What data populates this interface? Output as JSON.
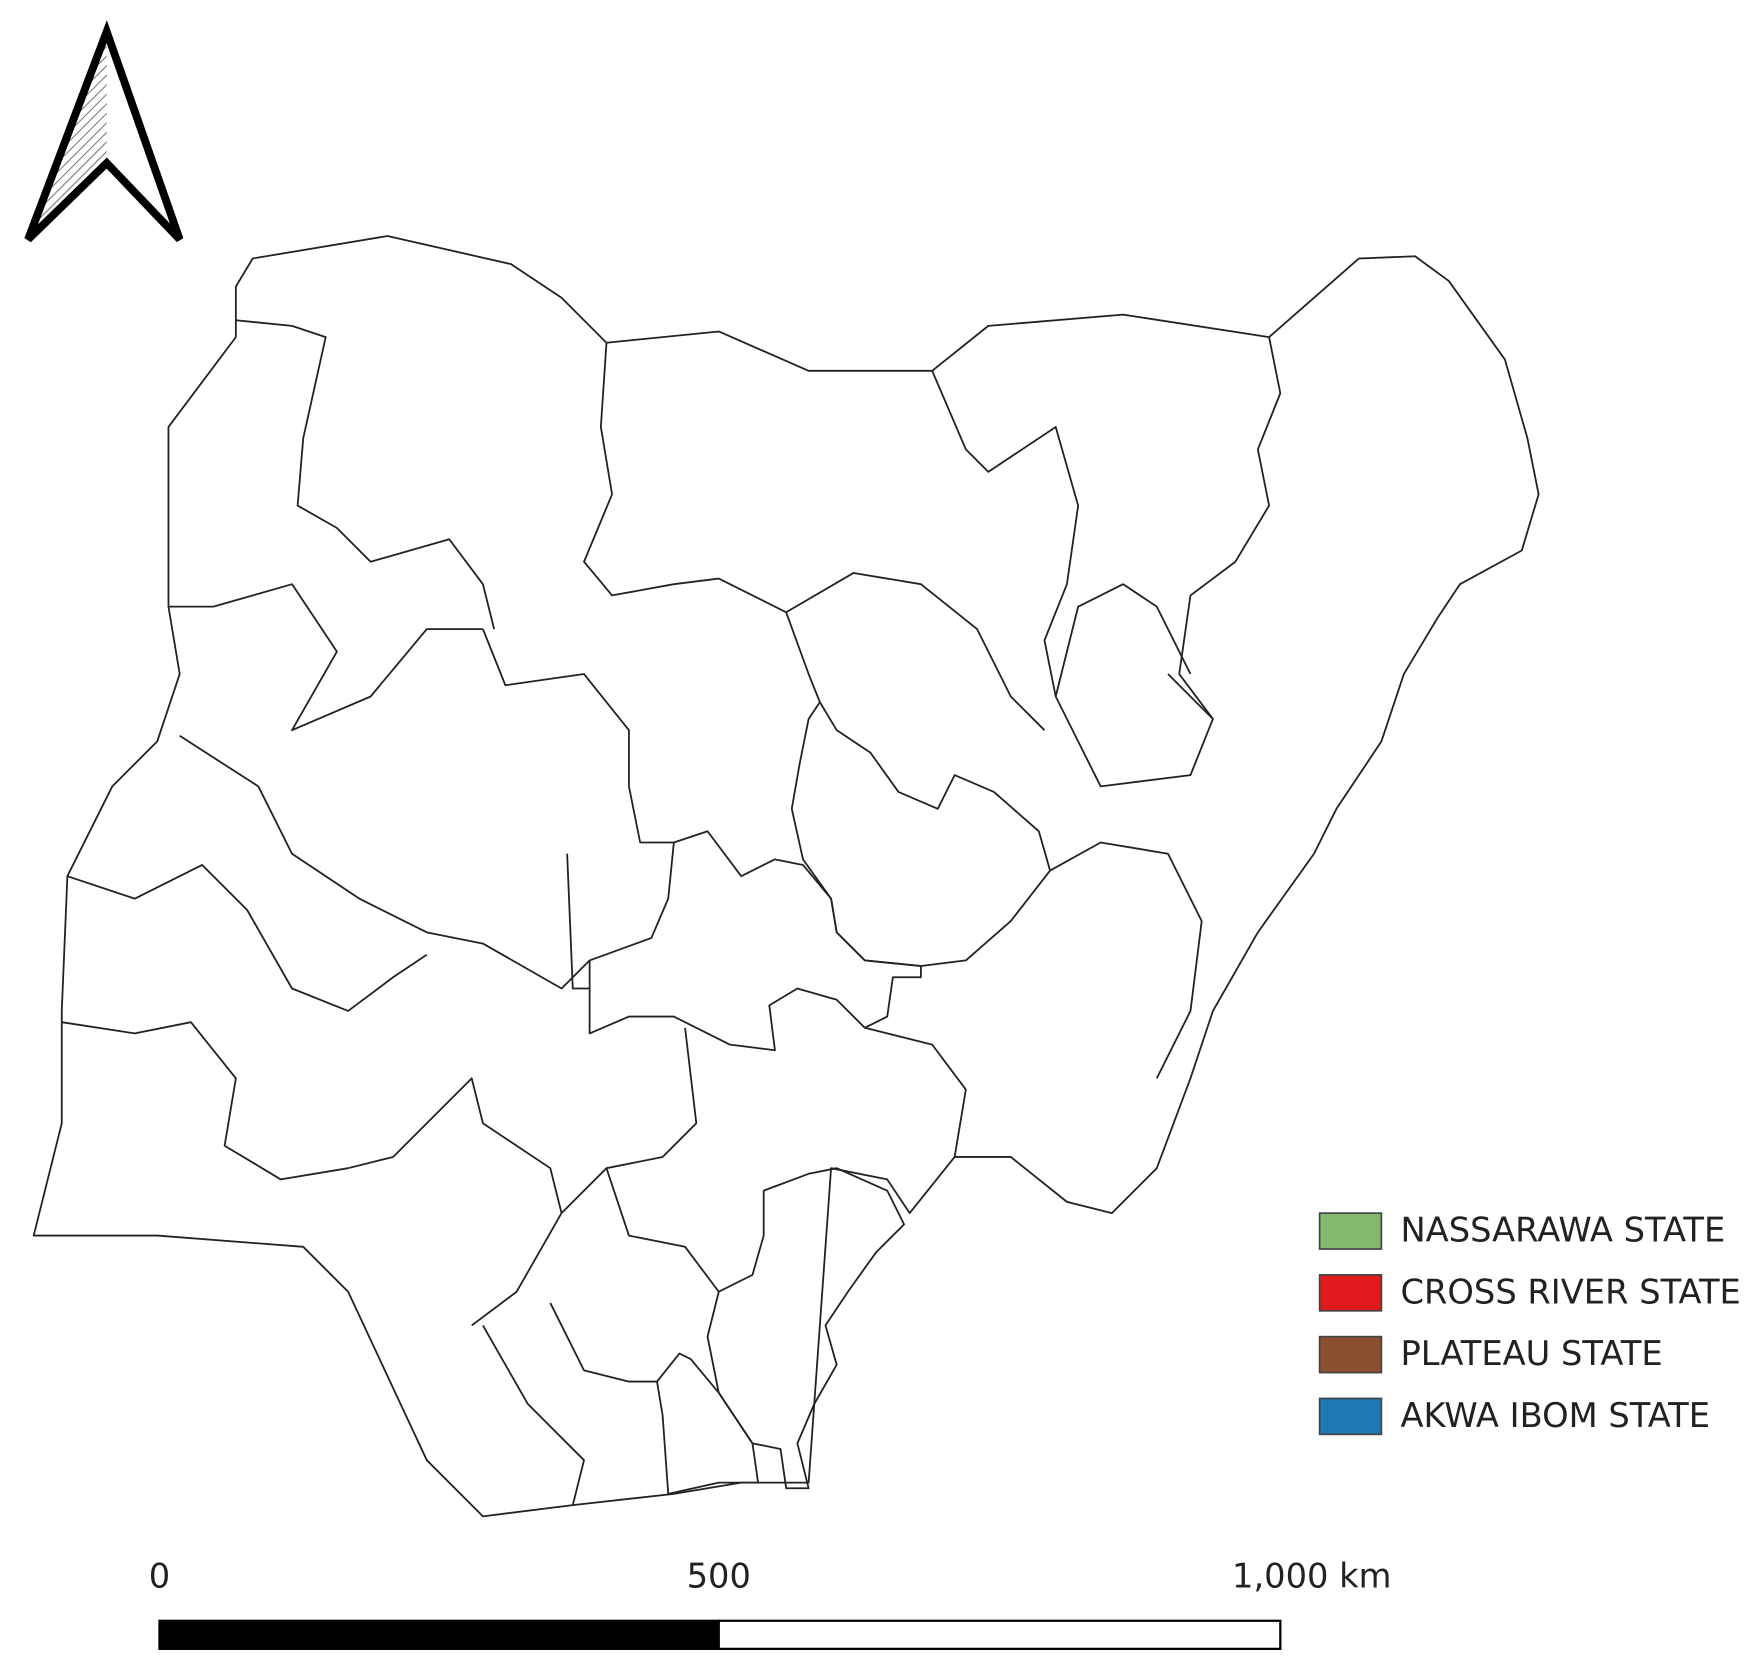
{
  "legend": {
    "items": [
      {
        "label": "NASSARAWA STATE",
        "color": "#84b86f"
      },
      {
        "label": "CROSS RIVER STATE",
        "color": "#e01a1d"
      },
      {
        "label": "PLATEAU STATE",
        "color": "#8b5030"
      },
      {
        "label": "AKWA IBOM STATE",
        "color": "#1f77b4"
      }
    ]
  },
  "scale_bar": {
    "labels": [
      "0",
      "500",
      "1,000 km"
    ]
  }
}
